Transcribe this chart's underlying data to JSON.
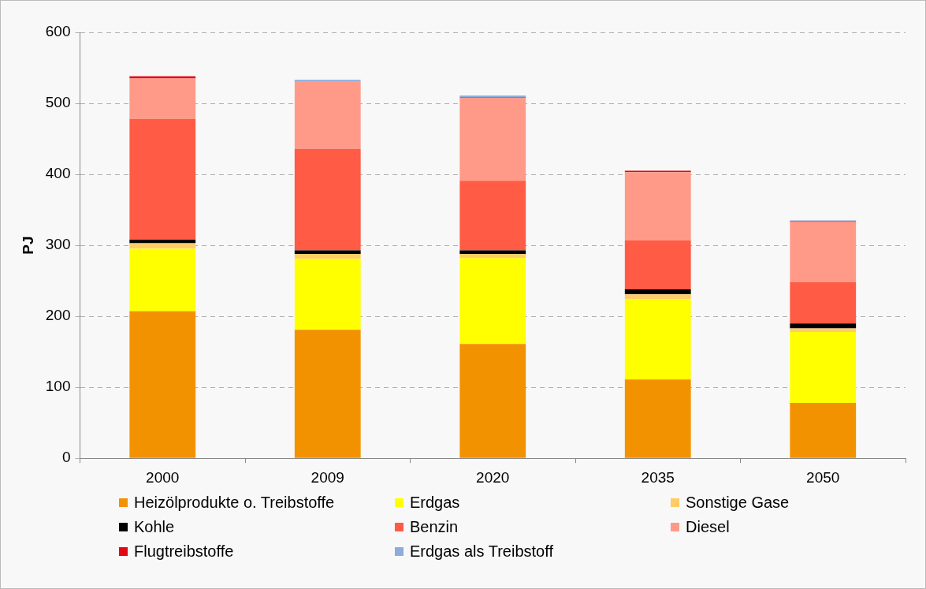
{
  "chart_data": {
    "type": "bar",
    "stacked": true,
    "ylabel": "PJ",
    "categories": [
      "2000",
      "2009",
      "2020",
      "2035",
      "2050"
    ],
    "ylim": [
      0,
      600
    ],
    "yticks": [
      0,
      100,
      200,
      300,
      400,
      500,
      600
    ],
    "grid": "y",
    "legend": "bottom",
    "series": [
      {
        "name": "Heizölprodukte o. Treibstoffe",
        "color": "#f39200",
        "values": [
          207,
          181,
          161,
          111,
          78
        ]
      },
      {
        "name": "Erdgas",
        "color": "#ffff00",
        "values": [
          88,
          100,
          121,
          113,
          100
        ]
      },
      {
        "name": "Sonstige Gase",
        "color": "#ffcc66",
        "values": [
          8,
          7,
          6,
          7,
          5
        ]
      },
      {
        "name": "Kohle",
        "color": "#000000",
        "values": [
          5,
          5,
          5,
          7,
          7
        ]
      },
      {
        "name": "Benzin",
        "color": "#ff5b45",
        "values": [
          170,
          143,
          98,
          69,
          58
        ]
      },
      {
        "name": "Diesel",
        "color": "#ff9a88",
        "values": [
          57,
          95,
          117,
          96,
          85
        ]
      },
      {
        "name": "Flugtreibstoffe",
        "color": "#e30613",
        "values": [
          3,
          0,
          1,
          2,
          1
        ]
      },
      {
        "name": "Erdgas als Treibstoff",
        "color": "#8faadc",
        "values": [
          0,
          2,
          2,
          null,
          1
        ]
      }
    ]
  }
}
